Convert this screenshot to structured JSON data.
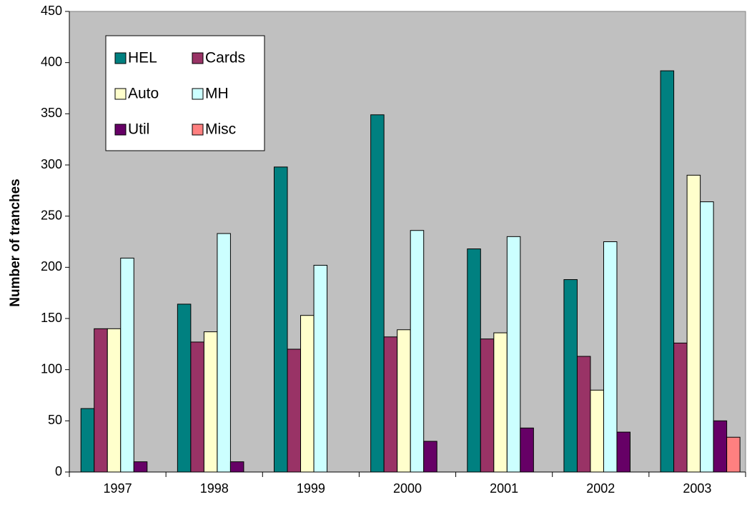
{
  "chart_data": {
    "type": "bar",
    "y_label": "Number of tranches",
    "categories": [
      "1997",
      "1998",
      "1999",
      "2000",
      "2001",
      "2002",
      "2003"
    ],
    "series": [
      {
        "name": "HEL",
        "color": "#008080",
        "values": [
          62,
          164,
          298,
          349,
          218,
          188,
          392
        ]
      },
      {
        "name": "Cards",
        "color": "#993366",
        "values": [
          140,
          127,
          120,
          132,
          130,
          113,
          126
        ]
      },
      {
        "name": "Auto",
        "color": "#FFFFCC",
        "values": [
          140,
          137,
          153,
          139,
          136,
          80,
          290
        ]
      },
      {
        "name": "MH",
        "color": "#CCFFFF",
        "values": [
          209,
          233,
          202,
          236,
          230,
          225,
          264
        ]
      },
      {
        "name": "Util",
        "color": "#660066",
        "values": [
          10,
          10,
          null,
          30,
          43,
          39,
          50
        ]
      },
      {
        "name": "Misc",
        "color": "#FF8080",
        "values": [
          null,
          null,
          null,
          null,
          null,
          null,
          34
        ]
      }
    ],
    "ylim": [
      0,
      450
    ],
    "yticks": [
      0,
      50,
      100,
      150,
      200,
      250,
      300,
      350,
      400,
      450
    ],
    "grid": false,
    "plot_background": "#C0C0C0",
    "legend_position": "upper-left"
  }
}
